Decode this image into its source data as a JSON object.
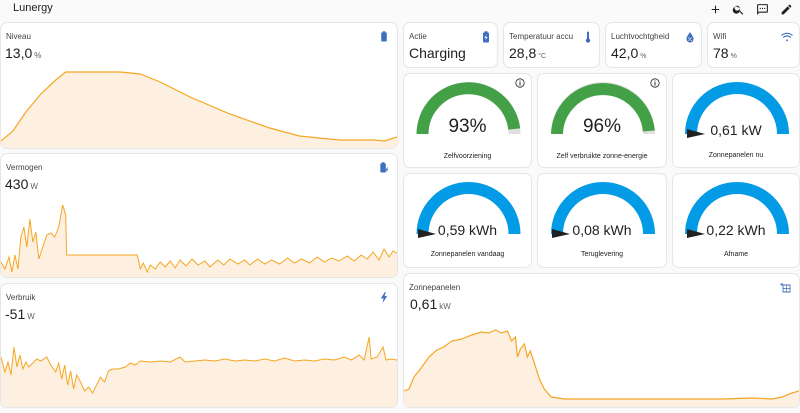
{
  "app": {
    "title": "Lunergy"
  },
  "toolbar": {
    "icons": [
      "plus-icon",
      "search-icon",
      "chat-icon",
      "pencil-icon"
    ]
  },
  "colors": {
    "accent": "#f5a623",
    "fill": "#fdf0e0",
    "gauge_green": "#43a047",
    "gauge_blue": "#039be5",
    "icon_blue": "#3f6ebf"
  },
  "niveau": {
    "name": "Niveau",
    "value": "13,0",
    "unit": "%",
    "icon": "battery-icon"
  },
  "vermogen": {
    "name": "Vermogen",
    "value": "430",
    "unit": "W",
    "icon": "battery-charging-icon"
  },
  "verbruik": {
    "name": "Verbruik",
    "value": "-51",
    "unit": "W",
    "icon": "lightning-icon"
  },
  "zonnepanelen": {
    "name": "Zonnepanelen",
    "value": "0,61",
    "unit": "kW",
    "icon": "solar-power-icon"
  },
  "tiles": [
    {
      "name": "Actie",
      "value": "Charging",
      "unit": "",
      "icon": "battery-charging-icon"
    },
    {
      "name": "Temperatuur accu",
      "value": "28,8",
      "unit": "°C",
      "icon": "thermometer-icon"
    },
    {
      "name": "Luchtvochtgheid",
      "value": "42,0",
      "unit": "%",
      "icon": "water-percent-icon"
    },
    {
      "name": "Wifi",
      "value": "78",
      "unit": "%",
      "icon": "wifi-icon"
    }
  ],
  "gauges": [
    {
      "label": "Zelfvoorziening",
      "value_text": "93%",
      "fraction": 0.93,
      "color": "green",
      "needle": false,
      "info": true
    },
    {
      "label": "Zelf verbruikte zonne-energie",
      "value_text": "96%",
      "fraction": 0.96,
      "color": "green",
      "needle": false,
      "info": true
    },
    {
      "label": "Zonnepanelen nu",
      "value_text": "0,61 kW",
      "fraction": 0.0,
      "color": "blue",
      "needle": true,
      "info": false
    },
    {
      "label": "Zonnepanelen vandaag",
      "value_text": "0,59 kWh",
      "fraction": 0.0,
      "color": "blue",
      "needle": true,
      "info": false
    },
    {
      "label": "Teruglevering",
      "value_text": "0,08 kWh",
      "fraction": 0.0,
      "color": "blue",
      "needle": true,
      "info": false
    },
    {
      "label": "Afname",
      "value_text": "0,22 kWh",
      "fraction": 0.0,
      "color": "blue",
      "needle": true,
      "info": false
    }
  ]
}
